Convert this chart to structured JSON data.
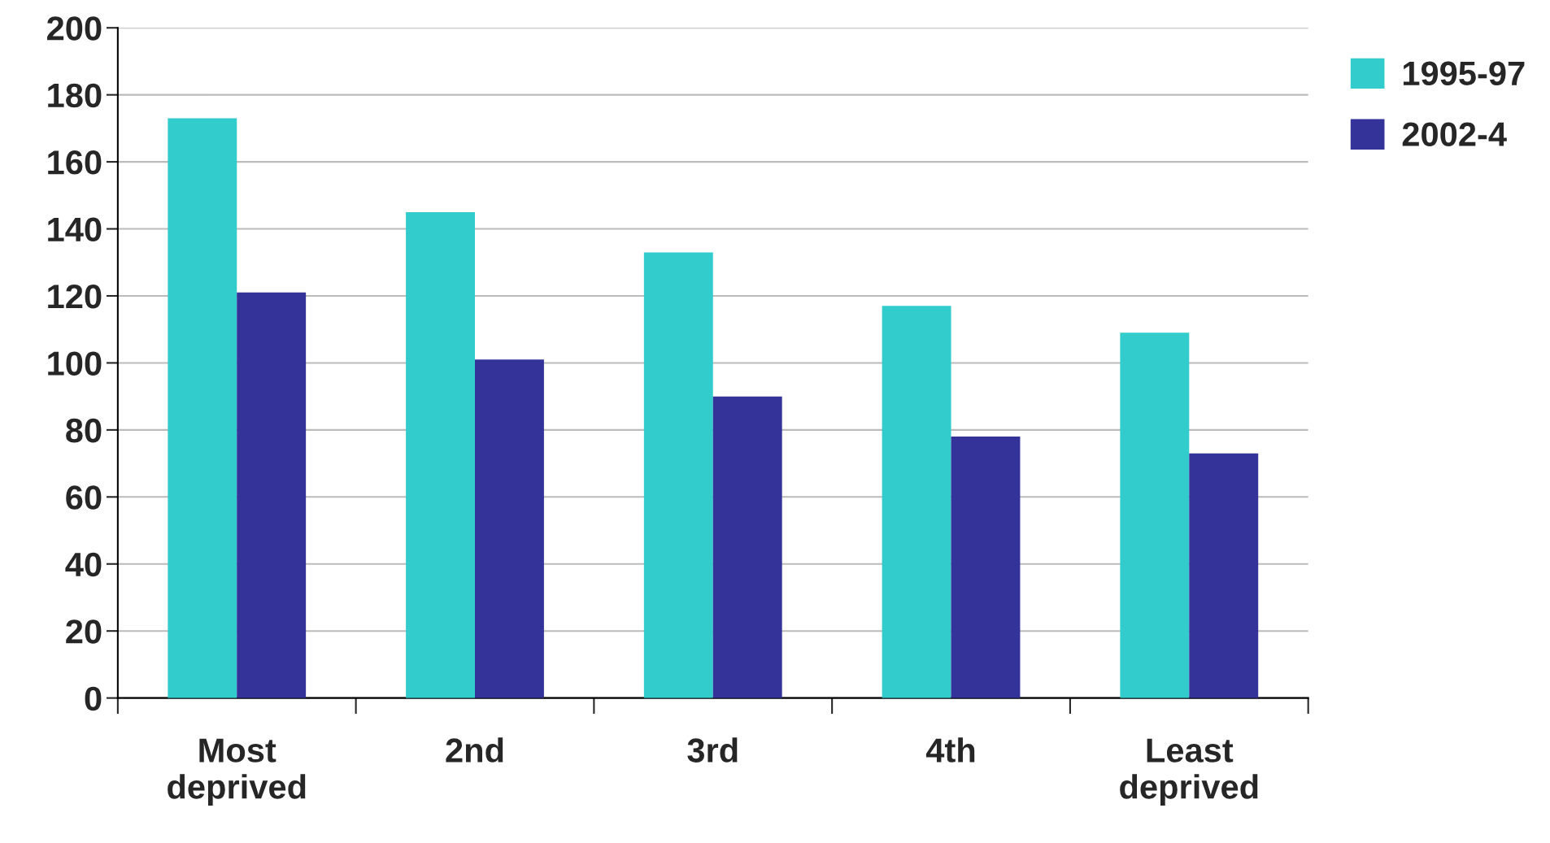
{
  "chart_data": {
    "type": "bar",
    "categories": [
      "Most\ndeprived",
      "2nd",
      "3rd",
      "4th",
      "Least\ndeprived"
    ],
    "series": [
      {
        "name": "1995-97",
        "color": "#33cccc",
        "values": [
          173,
          145,
          133,
          117,
          109
        ]
      },
      {
        "name": "2002-4",
        "color": "#333399",
        "values": [
          121,
          101,
          90,
          78,
          73
        ]
      }
    ],
    "ylim": [
      0,
      200
    ],
    "yticks": [
      0,
      20,
      40,
      60,
      80,
      100,
      120,
      140,
      160,
      180,
      200
    ],
    "grid": "y",
    "legend": "top right"
  }
}
